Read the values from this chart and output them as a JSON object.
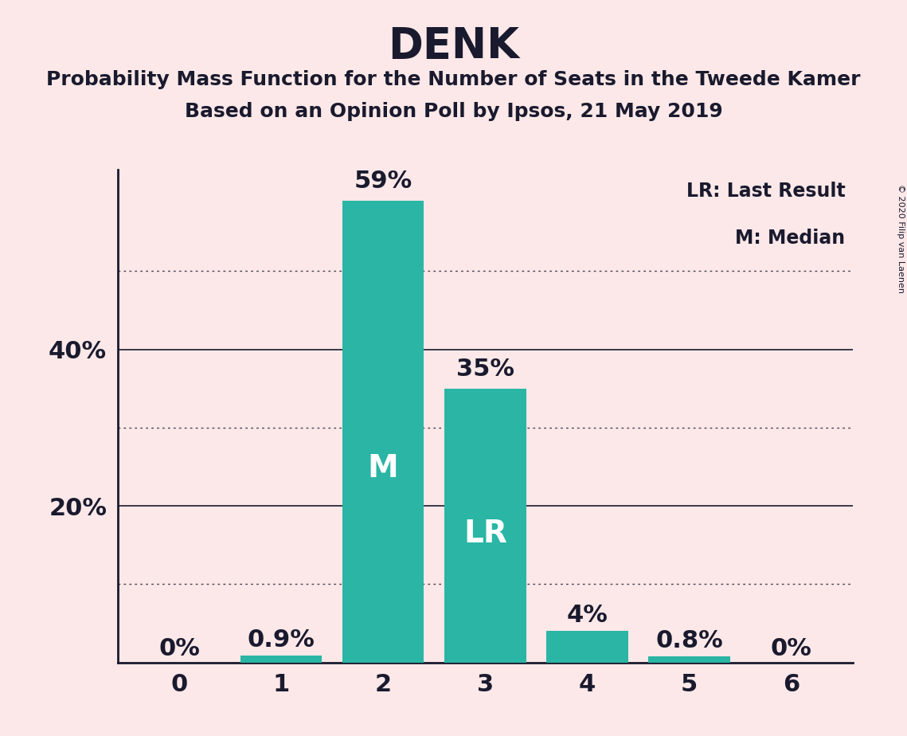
{
  "title": "DENK",
  "subtitle1": "Probability Mass Function for the Number of Seats in the Tweede Kamer",
  "subtitle2": "Based on an Opinion Poll by Ipsos, 21 May 2019",
  "copyright": "© 2020 Filip van Laenen",
  "categories": [
    0,
    1,
    2,
    3,
    4,
    5,
    6
  ],
  "values": [
    0.0,
    0.9,
    59.0,
    35.0,
    4.0,
    0.8,
    0.0
  ],
  "bar_color": "#2ab5a5",
  "bar_labels": [
    "0%",
    "0.9%",
    "59%",
    "35%",
    "4%",
    "0.8%",
    "0%"
  ],
  "bar_annotations": {
    "2": "M",
    "3": "LR"
  },
  "annotation_color": "#ffffff",
  "background_color": "#fce8e8",
  "text_color": "#1a1a2e",
  "yticks_solid": [
    20,
    40
  ],
  "yticks_dotted": [
    10,
    30,
    50
  ],
  "ylim": [
    0,
    63
  ],
  "legend_text": [
    "LR: Last Result",
    "M: Median"
  ],
  "legend_fontsize": 17,
  "title_fontsize": 38,
  "subtitle_fontsize": 18,
  "bar_label_fontsize": 22,
  "annotation_fontsize": 28,
  "axis_label_fontsize": 22
}
